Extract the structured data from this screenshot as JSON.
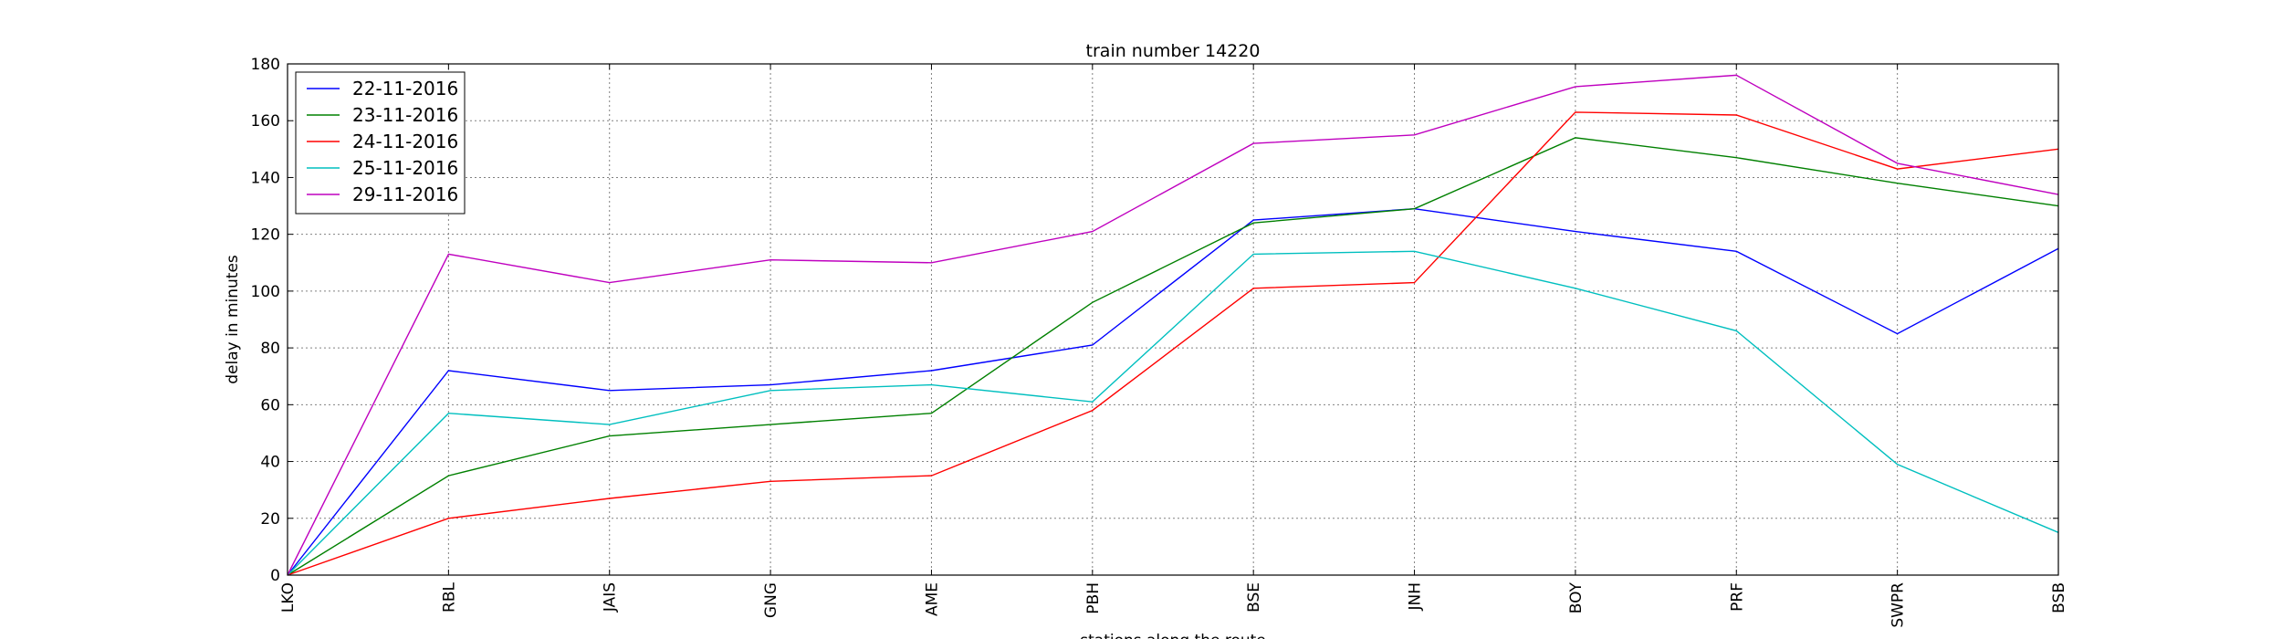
{
  "chart_data": {
    "type": "line",
    "title": "train number 14220",
    "xlabel": "stations along the route",
    "ylabel": "delay in minutes",
    "categories": [
      "LKO",
      "RBL",
      "JAIS",
      "GNG",
      "AME",
      "PBH",
      "BSE",
      "JNH",
      "BOY",
      "PRF",
      "SWPR",
      "BSB"
    ],
    "ylim": [
      0,
      180
    ],
    "yticks": [
      0,
      20,
      40,
      60,
      80,
      100,
      120,
      140,
      160,
      180
    ],
    "grid": true,
    "legend_position": "top-left",
    "series": [
      {
        "name": "22-11-2016",
        "color": "#0000ff",
        "values": [
          0,
          72,
          65,
          67,
          72,
          81,
          125,
          129,
          121,
          114,
          85,
          115
        ]
      },
      {
        "name": "23-11-2016",
        "color": "#008000",
        "values": [
          0,
          35,
          49,
          53,
          57,
          96,
          124,
          129,
          154,
          147,
          138,
          130
        ]
      },
      {
        "name": "24-11-2016",
        "color": "#ff0000",
        "values": [
          0,
          20,
          27,
          33,
          35,
          58,
          101,
          103,
          163,
          162,
          143,
          150
        ]
      },
      {
        "name": "25-11-2016",
        "color": "#00bfbf",
        "values": [
          0,
          57,
          53,
          65,
          67,
          61,
          113,
          114,
          101,
          86,
          39,
          15
        ]
      },
      {
        "name": "29-11-2016",
        "color": "#bf00bf",
        "values": [
          0,
          113,
          103,
          111,
          110,
          121,
          152,
          155,
          172,
          176,
          145,
          134
        ]
      }
    ]
  }
}
